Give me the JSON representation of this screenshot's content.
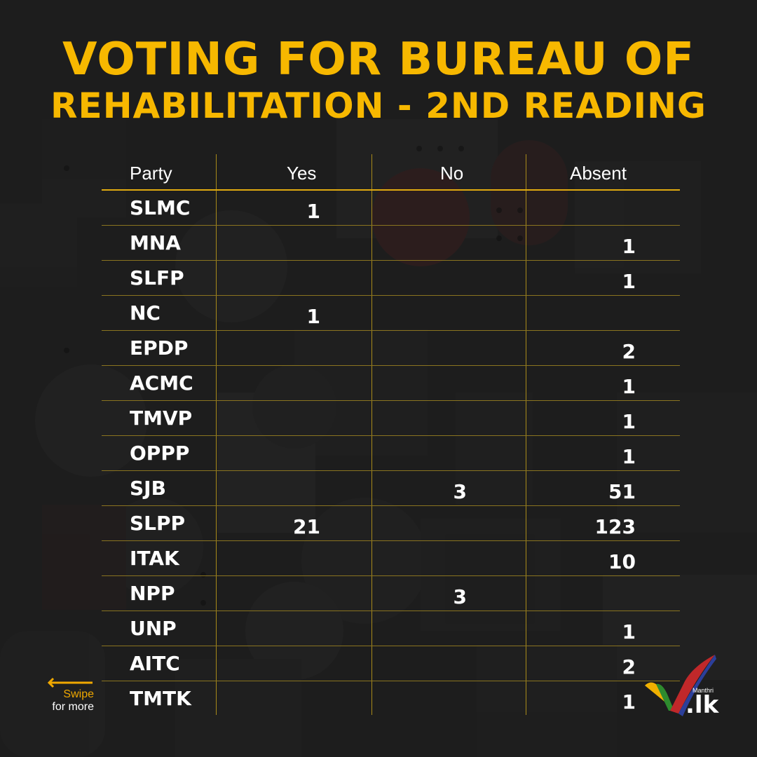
{
  "title": {
    "line1": "VOTING FOR BUREAU OF",
    "line2": "REHABILITATION - 2ND READING"
  },
  "table": {
    "headers": {
      "party": "Party",
      "yes": "Yes",
      "no": "No",
      "absent": "Absent"
    },
    "rows": [
      {
        "party": "SLMC",
        "yes": "1",
        "no": "",
        "absent": ""
      },
      {
        "party": "MNA",
        "yes": "",
        "no": "",
        "absent": "1"
      },
      {
        "party": "SLFP",
        "yes": "",
        "no": "",
        "absent": "1"
      },
      {
        "party": "NC",
        "yes": "1",
        "no": "",
        "absent": ""
      },
      {
        "party": "EPDP",
        "yes": "",
        "no": "",
        "absent": "2"
      },
      {
        "party": "ACMC",
        "yes": "",
        "no": "",
        "absent": "1"
      },
      {
        "party": "TMVP",
        "yes": "",
        "no": "",
        "absent": "1"
      },
      {
        "party": "OPPP",
        "yes": "",
        "no": "",
        "absent": "1"
      },
      {
        "party": "SJB",
        "yes": "",
        "no": "3",
        "absent": "51"
      },
      {
        "party": "SLPP",
        "yes": "21",
        "no": "",
        "absent": "123"
      },
      {
        "party": "ITAK",
        "yes": "",
        "no": "",
        "absent": "10"
      },
      {
        "party": "NPP",
        "yes": "",
        "no": "3",
        "absent": ""
      },
      {
        "party": "UNP",
        "yes": "",
        "no": "",
        "absent": "1"
      },
      {
        "party": "AITC",
        "yes": "",
        "no": "",
        "absent": "2"
      },
      {
        "party": "TMTK",
        "yes": "",
        "no": "",
        "absent": "1"
      }
    ]
  },
  "swipe": {
    "line1": "Swipe",
    "line2": "for more",
    "icon": "arrow-left-icon"
  },
  "logo": {
    "brand": "Manthri",
    "tld": ".lk",
    "icon": "checkmark-icon"
  },
  "colors": {
    "accent": "#f7b800",
    "background": "#1d1d1d",
    "text": "#ffffff"
  }
}
